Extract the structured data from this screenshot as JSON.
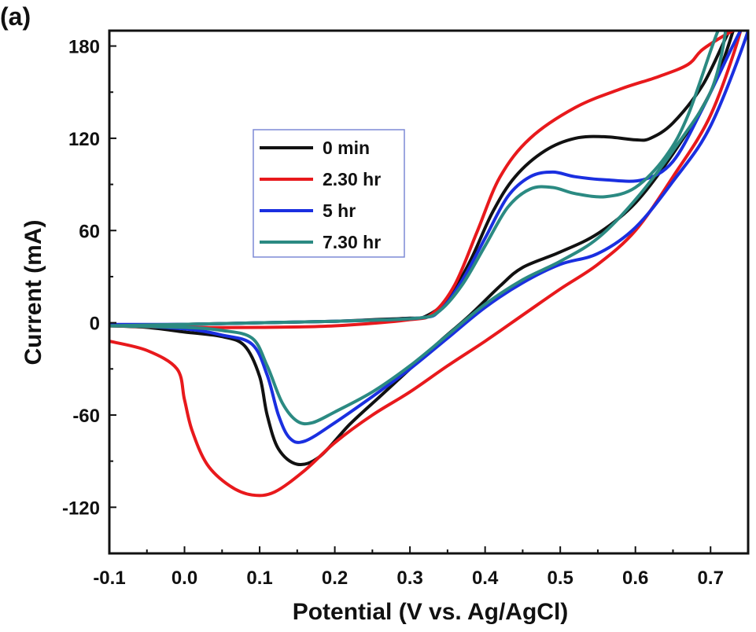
{
  "panel_label": "(a)",
  "chart_data": {
    "type": "line",
    "xlabel": "Potential (V vs. Ag/AgCl)",
    "ylabel": "Current (mA)",
    "xlim": [
      -0.1,
      0.75
    ],
    "ylim": [
      -150,
      190
    ],
    "xticks": [
      -0.1,
      0.0,
      0.1,
      0.2,
      0.3,
      0.4,
      0.5,
      0.6,
      0.7
    ],
    "xtick_labels": [
      "-0.1",
      "0.0",
      "0.1",
      "0.2",
      "0.3",
      "0.4",
      "0.5",
      "0.6",
      "0.7"
    ],
    "yticks": [
      -120,
      -60,
      0,
      60,
      120,
      180
    ],
    "ytick_labels": [
      "-120",
      "-60",
      "0",
      "60",
      "120",
      "180"
    ],
    "legend_position": "upper-left",
    "grid": false,
    "series": [
      {
        "name": "0 min",
        "color": "#111111",
        "points": [
          [
            -0.1,
            -2
          ],
          [
            -0.05,
            -3
          ],
          [
            0.0,
            -6
          ],
          [
            0.05,
            -9
          ],
          [
            0.08,
            -15
          ],
          [
            0.1,
            -35
          ],
          [
            0.11,
            -60
          ],
          [
            0.125,
            -82
          ],
          [
            0.15,
            -92
          ],
          [
            0.18,
            -87
          ],
          [
            0.22,
            -66
          ],
          [
            0.26,
            -48
          ],
          [
            0.3,
            -30
          ],
          [
            0.34,
            -12
          ],
          [
            0.38,
            5
          ],
          [
            0.42,
            24
          ],
          [
            0.45,
            36
          ],
          [
            0.5,
            46
          ],
          [
            0.55,
            58
          ],
          [
            0.6,
            78
          ],
          [
            0.65,
            110
          ],
          [
            0.7,
            150
          ],
          [
            0.73,
            190
          ],
          [
            0.725,
            190
          ],
          [
            0.69,
            155
          ],
          [
            0.65,
            130
          ],
          [
            0.62,
            120
          ],
          [
            0.6,
            119
          ],
          [
            0.56,
            121
          ],
          [
            0.52,
            120
          ],
          [
            0.48,
            112
          ],
          [
            0.44,
            95
          ],
          [
            0.41,
            72
          ],
          [
            0.38,
            40
          ],
          [
            0.35,
            15
          ],
          [
            0.32,
            4
          ],
          [
            0.3,
            3
          ],
          [
            0.25,
            2
          ],
          [
            0.2,
            1
          ],
          [
            0.1,
            0
          ],
          [
            0.0,
            -1
          ],
          [
            -0.1,
            -2
          ]
        ]
      },
      {
        "name": "2.30 hr",
        "color": "#e8191c",
        "points": [
          [
            -0.1,
            -12
          ],
          [
            -0.05,
            -18
          ],
          [
            -0.01,
            -30
          ],
          [
            0.0,
            -50
          ],
          [
            0.01,
            -70
          ],
          [
            0.03,
            -92
          ],
          [
            0.06,
            -106
          ],
          [
            0.09,
            -112
          ],
          [
            0.12,
            -110
          ],
          [
            0.16,
            -96
          ],
          [
            0.2,
            -78
          ],
          [
            0.25,
            -60
          ],
          [
            0.3,
            -45
          ],
          [
            0.35,
            -28
          ],
          [
            0.4,
            -12
          ],
          [
            0.45,
            5
          ],
          [
            0.5,
            22
          ],
          [
            0.55,
            38
          ],
          [
            0.6,
            60
          ],
          [
            0.65,
            95
          ],
          [
            0.7,
            135
          ],
          [
            0.74,
            190
          ],
          [
            0.73,
            190
          ],
          [
            0.69,
            178
          ],
          [
            0.67,
            168
          ],
          [
            0.63,
            160
          ],
          [
            0.58,
            152
          ],
          [
            0.52,
            140
          ],
          [
            0.46,
            120
          ],
          [
            0.42,
            95
          ],
          [
            0.39,
            60
          ],
          [
            0.36,
            25
          ],
          [
            0.33,
            6
          ],
          [
            0.3,
            2
          ],
          [
            0.2,
            -2
          ],
          [
            0.1,
            -3
          ],
          [
            0.0,
            -3
          ],
          [
            -0.1,
            -2
          ]
        ]
      },
      {
        "name": "5 hr",
        "color": "#1a2fe0",
        "points": [
          [
            -0.1,
            -1
          ],
          [
            0.0,
            -4
          ],
          [
            0.05,
            -8
          ],
          [
            0.09,
            -14
          ],
          [
            0.11,
            -34
          ],
          [
            0.125,
            -60
          ],
          [
            0.14,
            -75
          ],
          [
            0.16,
            -77
          ],
          [
            0.2,
            -65
          ],
          [
            0.25,
            -48
          ],
          [
            0.3,
            -30
          ],
          [
            0.35,
            -10
          ],
          [
            0.4,
            10
          ],
          [
            0.45,
            26
          ],
          [
            0.5,
            38
          ],
          [
            0.55,
            45
          ],
          [
            0.6,
            62
          ],
          [
            0.65,
            92
          ],
          [
            0.7,
            128
          ],
          [
            0.75,
            190
          ],
          [
            0.74,
            190
          ],
          [
            0.69,
            140
          ],
          [
            0.65,
            105
          ],
          [
            0.61,
            93
          ],
          [
            0.56,
            93
          ],
          [
            0.52,
            95
          ],
          [
            0.49,
            98
          ],
          [
            0.46,
            95
          ],
          [
            0.43,
            82
          ],
          [
            0.4,
            55
          ],
          [
            0.37,
            28
          ],
          [
            0.34,
            8
          ],
          [
            0.31,
            3
          ],
          [
            0.2,
            1
          ],
          [
            0.1,
            0
          ],
          [
            0.0,
            -1
          ],
          [
            -0.1,
            -1
          ]
        ]
      },
      {
        "name": "7.30 hr",
        "color": "#2b8a82",
        "points": [
          [
            -0.1,
            -2
          ],
          [
            0.0,
            -3
          ],
          [
            0.05,
            -5
          ],
          [
            0.09,
            -10
          ],
          [
            0.11,
            -28
          ],
          [
            0.13,
            -52
          ],
          [
            0.15,
            -64
          ],
          [
            0.17,
            -65
          ],
          [
            0.2,
            -58
          ],
          [
            0.25,
            -45
          ],
          [
            0.3,
            -28
          ],
          [
            0.35,
            -8
          ],
          [
            0.4,
            12
          ],
          [
            0.45,
            28
          ],
          [
            0.5,
            40
          ],
          [
            0.55,
            55
          ],
          [
            0.6,
            80
          ],
          [
            0.65,
            112
          ],
          [
            0.7,
            150
          ],
          [
            0.72,
            190
          ],
          [
            0.71,
            190
          ],
          [
            0.67,
            135
          ],
          [
            0.64,
            108
          ],
          [
            0.6,
            88
          ],
          [
            0.56,
            82
          ],
          [
            0.52,
            84
          ],
          [
            0.49,
            88
          ],
          [
            0.46,
            87
          ],
          [
            0.43,
            75
          ],
          [
            0.4,
            50
          ],
          [
            0.37,
            25
          ],
          [
            0.34,
            8
          ],
          [
            0.31,
            3
          ],
          [
            0.2,
            1
          ],
          [
            0.1,
            0
          ],
          [
            0.0,
            -1
          ],
          [
            -0.1,
            -2
          ]
        ]
      }
    ]
  }
}
